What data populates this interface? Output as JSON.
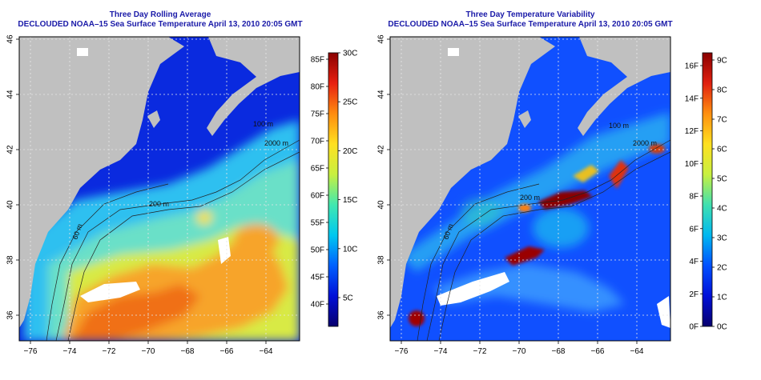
{
  "panels": [
    {
      "title": "Three Day Rolling Average",
      "subtitle": "DECLOUDED NOAA–15 Sea Surface Temperature April 13, 2010 20:05 GMT",
      "colorbar": {
        "left_labels": [
          "85F",
          "80F",
          "75F",
          "70F",
          "65F",
          "60F",
          "55F",
          "50F",
          "45F",
          "40F"
        ],
        "right_labels": [
          "30C",
          "25C",
          "20C",
          "15C",
          "10C",
          "5C"
        ]
      }
    },
    {
      "title": "Three Day Temperature Variability",
      "subtitle": "DECLOUDED NOAA–15 Sea Surface Temperature April 13, 2010 20:05 GMT",
      "colorbar": {
        "left_labels": [
          "16F",
          "14F",
          "12F",
          "10F",
          "8F",
          "6F",
          "4F",
          "2F",
          "0F"
        ],
        "right_labels": [
          "9C",
          "8C",
          "7C",
          "6C",
          "5C",
          "4C",
          "3C",
          "2C",
          "1C",
          "0C"
        ]
      }
    }
  ],
  "axes": {
    "x_ticks": [
      "−76",
      "−74",
      "−72",
      "−70",
      "−68",
      "−66",
      "−64"
    ],
    "y_ticks": [
      "36",
      "38",
      "40",
      "42",
      "44",
      "46"
    ]
  },
  "contour_labels": [
    "200 m",
    "60 m",
    "100 m",
    "2000 m"
  ],
  "colors": {
    "land": "#c0c0c0",
    "title": "#1a1aa8",
    "colorbar_sst": [
      "#08006e",
      "#0010d8",
      "#0060ff",
      "#00c8f0",
      "#40e8b0",
      "#c8f040",
      "#ffe020",
      "#ff8c10",
      "#e82010",
      "#8a0000"
    ],
    "colorbar_var": [
      "#08006e",
      "#0010d8",
      "#0050ff",
      "#00b8f0",
      "#40e0b0",
      "#c8f040",
      "#ffe020",
      "#ff9010",
      "#e02010",
      "#8a0000"
    ]
  }
}
